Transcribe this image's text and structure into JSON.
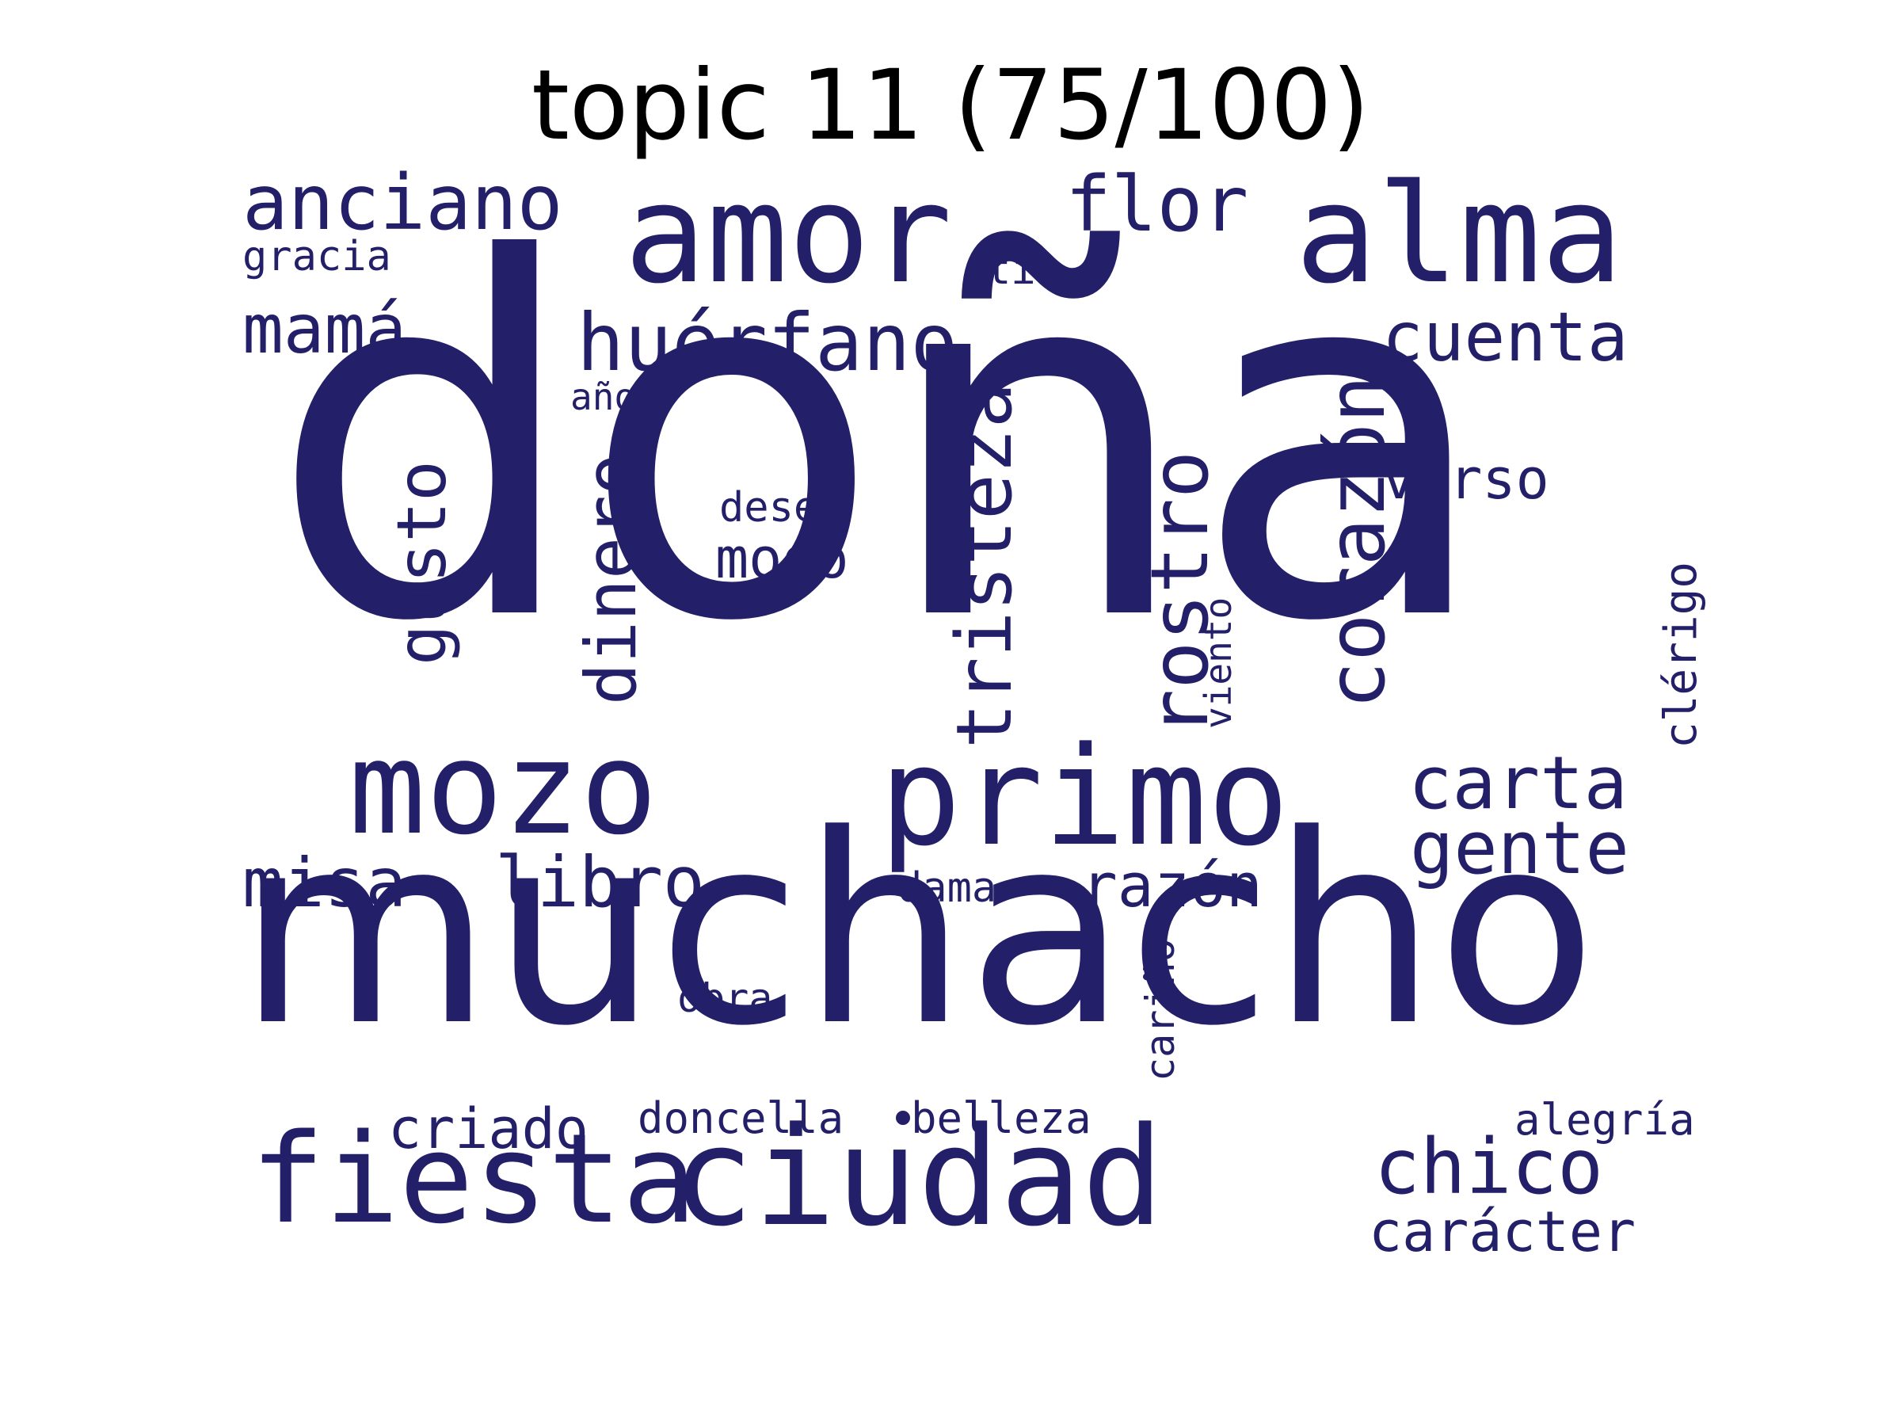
{
  "title": "topic 11 (75/100)",
  "word_color": "#231f68",
  "words": [
    {
      "text": "doña",
      "weight": 100
    },
    {
      "text": "muchacho",
      "weight": 60
    },
    {
      "text": "primo",
      "weight": 30
    },
    {
      "text": "ciudad",
      "weight": 30
    },
    {
      "text": "amor",
      "weight": 29
    },
    {
      "text": "alma",
      "weight": 29
    },
    {
      "text": "mozo",
      "weight": 27
    },
    {
      "text": "fiesta",
      "weight": 26
    },
    {
      "text": "corazón",
      "weight": 18
    },
    {
      "text": "rostro",
      "weight": 17
    },
    {
      "text": "huérfano",
      "weight": 17
    },
    {
      "text": "tristeza",
      "weight": 16
    },
    {
      "text": "flor",
      "weight": 16
    },
    {
      "text": "chico",
      "weight": 16
    },
    {
      "text": "anciano",
      "weight": 16
    },
    {
      "text": "carta",
      "weight": 16
    },
    {
      "text": "gente",
      "weight": 16
    },
    {
      "text": "libro",
      "weight": 15
    },
    {
      "text": "dinero",
      "weight": 15
    },
    {
      "text": "gusto",
      "weight": 14
    },
    {
      "text": "misa",
      "weight": 14
    },
    {
      "text": "cuenta",
      "weight": 14
    },
    {
      "text": "mamá",
      "weight": 14
    },
    {
      "text": "razón",
      "weight": 13
    },
    {
      "text": "carácter",
      "weight": 12
    },
    {
      "text": "criado",
      "weight": 12
    },
    {
      "text": "verso",
      "weight": 12
    },
    {
      "text": "modo",
      "weight": 12
    },
    {
      "text": "clérigo",
      "weight": 9
    },
    {
      "text": "doncella",
      "weight": 9
    },
    {
      "text": "belleza",
      "weight": 9
    },
    {
      "text": "alegría",
      "weight": 9
    },
    {
      "text": "deseo",
      "weight": 9
    },
    {
      "text": "cariño",
      "weight": 8
    },
    {
      "text": "obra",
      "weight": 8
    },
    {
      "text": "dama",
      "weight": 8
    },
    {
      "text": "viento",
      "weight": 7
    },
    {
      "text": "gracia",
      "weight": 8
    },
    {
      "text": "tío",
      "weight": 8
    },
    {
      "text": "año",
      "weight": 7
    }
  ]
}
